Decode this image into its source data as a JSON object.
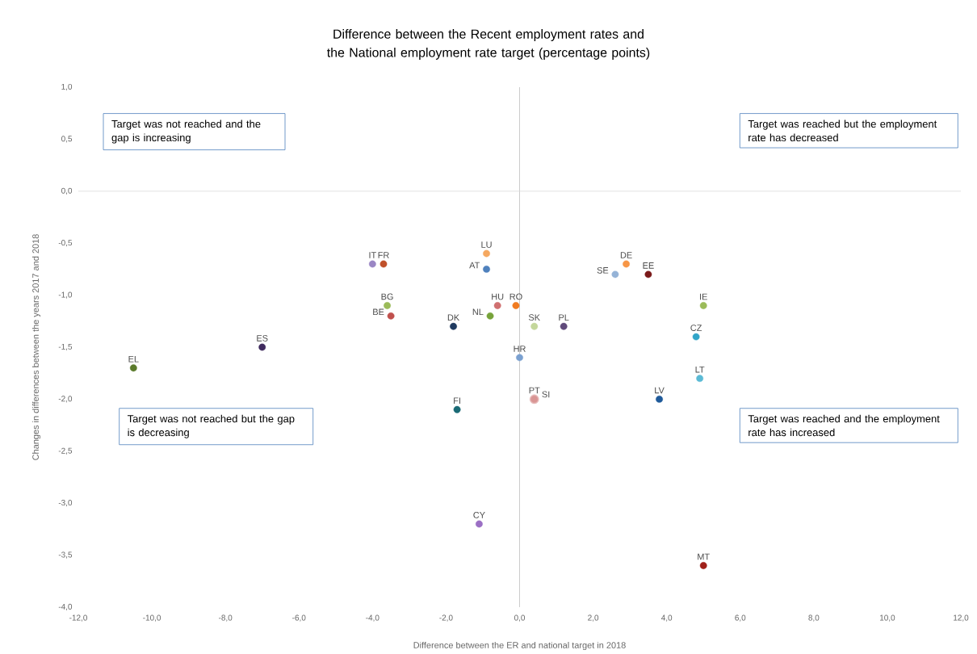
{
  "chart_data": {
    "type": "scatter",
    "title": "Difference between the Recent employment rates and the National employment rate target (percentage points)",
    "xlabel": "Difference between the ER and national target in 2018",
    "ylabel": "Changes in differences between the years  2017 and 2018",
    "marker": "circle",
    "legend": false,
    "grid": false,
    "xlim": [
      -12,
      12
    ],
    "ylim": [
      -4,
      1
    ],
    "xticks": [
      {
        "value": -12,
        "label": "-12,0"
      },
      {
        "value": -10,
        "label": "-10,0"
      },
      {
        "value": -8,
        "label": "-8,0"
      },
      {
        "value": -6,
        "label": "-6,0"
      },
      {
        "value": -4,
        "label": "-4,0"
      },
      {
        "value": -2,
        "label": "-2,0"
      },
      {
        "value": 0,
        "label": "0,0"
      },
      {
        "value": 2,
        "label": "2,0"
      },
      {
        "value": 4,
        "label": "4,0"
      },
      {
        "value": 6,
        "label": "6,0"
      },
      {
        "value": 8,
        "label": "8,0"
      },
      {
        "value": 10,
        "label": "10,0"
      },
      {
        "value": 12,
        "label": "12,0"
      }
    ],
    "yticks": [
      {
        "value": 1,
        "label": "1,0"
      },
      {
        "value": 0.5,
        "label": "0,5"
      },
      {
        "value": 0,
        "label": "0,0"
      },
      {
        "value": -0.5,
        "label": "-0,5"
      },
      {
        "value": -1,
        "label": "-1,0"
      },
      {
        "value": -1.5,
        "label": "-1,5"
      },
      {
        "value": -2,
        "label": "-2,0"
      },
      {
        "value": -2.5,
        "label": "-2,5"
      },
      {
        "value": -3,
        "label": "-3,0"
      },
      {
        "value": -3.5,
        "label": "-3,5"
      },
      {
        "value": -4,
        "label": "-4,0"
      }
    ],
    "ref_lines": [
      {
        "axis": "x",
        "value": 0,
        "color": "#bfbfbf"
      },
      {
        "axis": "y",
        "value": 0,
        "color": "#d9d9d9"
      }
    ],
    "annotations": [
      "Target was not reached and the gap is increasing",
      "Target was reached but the employment rate has decreased",
      "Target was not reached but the gap is decreasing",
      "Target was reached and the employment rate has increased"
    ],
    "series": [
      {
        "name": "EL",
        "color": "#5a7a2a",
        "x": [
          -10.5
        ],
        "values": [
          -1.7
        ]
      },
      {
        "name": "ES",
        "color": "#3f2a5e",
        "x": [
          -7.0
        ],
        "values": [
          -1.5
        ]
      },
      {
        "name": "IT",
        "color": "#9a86c4",
        "x": [
          -4.0
        ],
        "values": [
          -0.7
        ]
      },
      {
        "name": "FR",
        "color": "#c0502a",
        "x": [
          -3.7
        ],
        "values": [
          -0.7
        ]
      },
      {
        "name": "BG",
        "color": "#9bbb59",
        "x": [
          -3.6
        ],
        "values": [
          -1.1
        ]
      },
      {
        "name": "BE",
        "color": "#c0504d",
        "x": [
          -3.5
        ],
        "values": [
          -1.2
        ]
      },
      {
        "name": "DK",
        "color": "#1f3a60",
        "x": [
          -1.8
        ],
        "values": [
          -1.3
        ]
      },
      {
        "name": "FI",
        "color": "#1a6a75",
        "x": [
          -1.7
        ],
        "values": [
          -2.1
        ]
      },
      {
        "name": "CY",
        "color": "#9b6fc4",
        "x": [
          -1.1
        ],
        "values": [
          -3.2
        ]
      },
      {
        "name": "LU",
        "color": "#f5a860",
        "x": [
          -0.9
        ],
        "values": [
          -0.6
        ]
      },
      {
        "name": "AT",
        "color": "#4f81bd",
        "x": [
          -0.9
        ],
        "values": [
          -0.75
        ]
      },
      {
        "name": "HU",
        "color": "#d07070",
        "x": [
          -0.6
        ],
        "values": [
          -1.1
        ]
      },
      {
        "name": "NL",
        "color": "#77a33a",
        "x": [
          -0.8
        ],
        "values": [
          -1.2
        ]
      },
      {
        "name": "RO",
        "color": "#f07b20",
        "x": [
          -0.1
        ],
        "values": [
          -1.1
        ]
      },
      {
        "name": "HR",
        "color": "#7aa0d0",
        "x": [
          0.0
        ],
        "values": [
          -1.6
        ]
      },
      {
        "name": "SK",
        "color": "#c4d79b",
        "x": [
          0.4
        ],
        "values": [
          -1.3
        ]
      },
      {
        "name": "PT",
        "color": "#e6b9b8",
        "x": [
          0.4
        ],
        "values": [
          -2.0
        ]
      },
      {
        "name": "SI",
        "color": "#d99594",
        "x": [
          0.4
        ],
        "values": [
          -2.0
        ]
      },
      {
        "name": "PL",
        "color": "#604a7b",
        "x": [
          1.2
        ],
        "values": [
          -1.3
        ]
      },
      {
        "name": "SE",
        "color": "#95b3d7",
        "x": [
          2.6
        ],
        "values": [
          -0.8
        ]
      },
      {
        "name": "DE",
        "color": "#f79646",
        "x": [
          2.9
        ],
        "values": [
          -0.7
        ]
      },
      {
        "name": "EE",
        "color": "#7a1a1a",
        "x": [
          3.5
        ],
        "values": [
          -0.8
        ]
      },
      {
        "name": "LV",
        "color": "#1f5a9a",
        "x": [
          3.8
        ],
        "values": [
          -2.0
        ]
      },
      {
        "name": "CZ",
        "color": "#31a5c8",
        "x": [
          4.8
        ],
        "values": [
          -1.4
        ]
      },
      {
        "name": "LT",
        "color": "#5bbad5",
        "x": [
          4.9
        ],
        "values": [
          -1.8
        ]
      },
      {
        "name": "IE",
        "color": "#9bbb59",
        "x": [
          5.0
        ],
        "values": [
          -1.1
        ]
      },
      {
        "name": "MT",
        "color": "#a0201a",
        "x": [
          5.0
        ],
        "values": [
          -3.6
        ]
      }
    ]
  }
}
